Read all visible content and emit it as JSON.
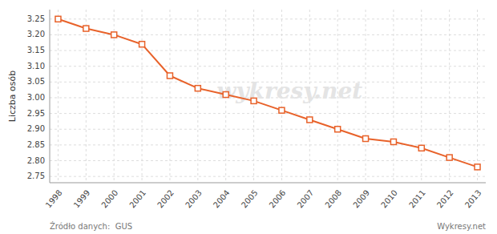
{
  "chart_data": {
    "type": "line",
    "y_label": "Liczba osób",
    "annotations": [
      "wykresy.net",
      "Źródło danych:  GUS",
      "Wykresy.net"
    ],
    "x": [
      1998,
      1999,
      2000,
      2001,
      2002,
      2003,
      2004,
      2005,
      2006,
      2007,
      2008,
      2009,
      2010,
      2011,
      2012,
      2013
    ],
    "values": [
      3.25,
      3.22,
      3.2,
      3.17,
      3.07,
      3.03,
      3.01,
      2.99,
      2.96,
      2.93,
      2.9,
      2.87,
      2.86,
      2.84,
      2.81,
      2.78
    ],
    "color": "#E8622A",
    "marker": "square",
    "xlim": [
      1997.7,
      2013.3
    ],
    "xticks": [
      1998,
      1999,
      2000,
      2001,
      2002,
      2003,
      2004,
      2005,
      2006,
      2007,
      2008,
      2009,
      2010,
      2011,
      2012,
      2013
    ],
    "ylim": [
      2.73,
      3.28
    ],
    "yticks": [
      2.75,
      {
        "value": 2.8,
        "label": "2.80"
      },
      2.85,
      {
        "value": 2.9,
        "label": "2.90"
      },
      2.95,
      {
        "value": 3.0,
        "label": "3.00"
      },
      3.05,
      {
        "value": 3.1,
        "label": "3.10"
      },
      3.15,
      {
        "value": 3.2,
        "label": "3.20"
      },
      3.25
    ],
    "grid": true
  }
}
